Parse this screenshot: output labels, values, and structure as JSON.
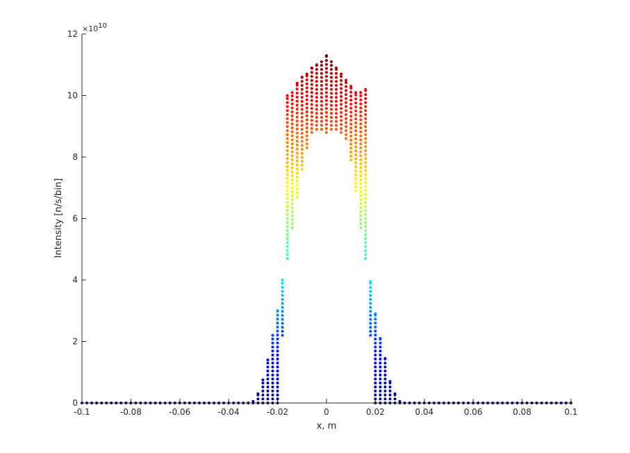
{
  "chart_data": {
    "type": "scatter",
    "xlabel": "x, m",
    "ylabel": "Intensity [n/s/bin]",
    "y_exponent_label": "×10",
    "y_exponent_power": "10",
    "xlim": [
      -0.1,
      0.1
    ],
    "ylim": [
      0,
      12
    ],
    "y_scale_factor": 10000000000.0,
    "xticks": [
      -0.1,
      -0.08,
      -0.06,
      -0.04,
      -0.02,
      0,
      0.02,
      0.04,
      0.06,
      0.08,
      0.1
    ],
    "xtick_labels": [
      "-0.1",
      "-0.08",
      "-0.06",
      "-0.04",
      "-0.02",
      "0",
      "0.02",
      "0.04",
      "0.06",
      "0.08",
      "0.1"
    ],
    "yticks": [
      0,
      2,
      4,
      6,
      8,
      10,
      12
    ],
    "ytick_labels": [
      "0",
      "2",
      "4",
      "6",
      "8",
      "10",
      "12"
    ],
    "grid": false,
    "legend": "none",
    "colormap": "jet",
    "color_range": [
      0,
      11.3
    ],
    "columns": [
      {
        "x": -0.1,
        "ymin": 0,
        "ymax": 0
      },
      {
        "x": -0.098,
        "ymin": 0,
        "ymax": 0
      },
      {
        "x": -0.096,
        "ymin": 0,
        "ymax": 0
      },
      {
        "x": -0.094,
        "ymin": 0,
        "ymax": 0
      },
      {
        "x": -0.092,
        "ymin": 0,
        "ymax": 0
      },
      {
        "x": -0.09,
        "ymin": 0,
        "ymax": 0
      },
      {
        "x": -0.088,
        "ymin": 0,
        "ymax": 0
      },
      {
        "x": -0.086,
        "ymin": 0,
        "ymax": 0
      },
      {
        "x": -0.084,
        "ymin": 0,
        "ymax": 0
      },
      {
        "x": -0.082,
        "ymin": 0,
        "ymax": 0
      },
      {
        "x": -0.08,
        "ymin": 0,
        "ymax": 0
      },
      {
        "x": -0.078,
        "ymin": 0,
        "ymax": 0
      },
      {
        "x": -0.076,
        "ymin": 0,
        "ymax": 0
      },
      {
        "x": -0.074,
        "ymin": 0,
        "ymax": 0
      },
      {
        "x": -0.072,
        "ymin": 0,
        "ymax": 0
      },
      {
        "x": -0.07,
        "ymin": 0,
        "ymax": 0
      },
      {
        "x": -0.068,
        "ymin": 0,
        "ymax": 0
      },
      {
        "x": -0.066,
        "ymin": 0,
        "ymax": 0
      },
      {
        "x": -0.064,
        "ymin": 0,
        "ymax": 0
      },
      {
        "x": -0.062,
        "ymin": 0,
        "ymax": 0
      },
      {
        "x": -0.06,
        "ymin": 0,
        "ymax": 0
      },
      {
        "x": -0.058,
        "ymin": 0,
        "ymax": 0
      },
      {
        "x": -0.056,
        "ymin": 0,
        "ymax": 0
      },
      {
        "x": -0.054,
        "ymin": 0,
        "ymax": 0
      },
      {
        "x": -0.052,
        "ymin": 0,
        "ymax": 0
      },
      {
        "x": -0.05,
        "ymin": 0,
        "ymax": 0
      },
      {
        "x": -0.048,
        "ymin": 0,
        "ymax": 0
      },
      {
        "x": -0.046,
        "ymin": 0,
        "ymax": 0
      },
      {
        "x": -0.044,
        "ymin": 0,
        "ymax": 0
      },
      {
        "x": -0.042,
        "ymin": 0,
        "ymax": 0
      },
      {
        "x": -0.04,
        "ymin": 0,
        "ymax": 0
      },
      {
        "x": -0.038,
        "ymin": 0,
        "ymax": 0
      },
      {
        "x": -0.036,
        "ymin": 0,
        "ymax": 0
      },
      {
        "x": -0.034,
        "ymin": 0,
        "ymax": 0
      },
      {
        "x": -0.032,
        "ymin": 0,
        "ymax": 0
      },
      {
        "x": -0.03,
        "ymin": 0,
        "ymax": 0.05
      },
      {
        "x": -0.028,
        "ymin": 0,
        "ymax": 0.3
      },
      {
        "x": -0.026,
        "ymin": 0,
        "ymax": 0.75
      },
      {
        "x": -0.024,
        "ymin": 0,
        "ymax": 1.4
      },
      {
        "x": -0.022,
        "ymin": 0,
        "ymax": 2.2
      },
      {
        "x": -0.02,
        "ymin": 0,
        "ymax": 3.0
      },
      {
        "x": -0.018,
        "ymin": 2.2,
        "ymax": 4.0
      },
      {
        "x": -0.016,
        "ymin": 4.7,
        "ymax": 10.0
      },
      {
        "x": -0.014,
        "ymin": 5.7,
        "ymax": 10.1
      },
      {
        "x": -0.012,
        "ymin": 6.7,
        "ymax": 10.4
      },
      {
        "x": -0.01,
        "ymin": 7.6,
        "ymax": 10.6
      },
      {
        "x": -0.008,
        "ymin": 8.3,
        "ymax": 10.7
      },
      {
        "x": -0.006,
        "ymin": 8.8,
        "ymax": 10.9
      },
      {
        "x": -0.004,
        "ymin": 8.9,
        "ymax": 11.0
      },
      {
        "x": -0.002,
        "ymin": 8.9,
        "ymax": 11.1
      },
      {
        "x": 0.0,
        "ymin": 8.8,
        "ymax": 11.3
      },
      {
        "x": 0.002,
        "ymin": 8.9,
        "ymax": 11.1
      },
      {
        "x": 0.004,
        "ymin": 8.9,
        "ymax": 10.9
      },
      {
        "x": 0.006,
        "ymin": 8.8,
        "ymax": 10.7
      },
      {
        "x": 0.008,
        "ymin": 8.6,
        "ymax": 10.5
      },
      {
        "x": 0.01,
        "ymin": 7.9,
        "ymax": 10.3
      },
      {
        "x": 0.012,
        "ymin": 6.9,
        "ymax": 10.1
      },
      {
        "x": 0.014,
        "ymin": 5.7,
        "ymax": 10.1
      },
      {
        "x": 0.016,
        "ymin": 4.7,
        "ymax": 10.2
      },
      {
        "x": 0.018,
        "ymin": 2.2,
        "ymax": 3.95
      },
      {
        "x": 0.02,
        "ymin": 0,
        "ymax": 2.9
      },
      {
        "x": 0.022,
        "ymin": 0,
        "ymax": 2.1
      },
      {
        "x": 0.024,
        "ymin": 0,
        "ymax": 1.45
      },
      {
        "x": 0.026,
        "ymin": 0,
        "ymax": 0.7
      },
      {
        "x": 0.028,
        "ymin": 0,
        "ymax": 0.3
      },
      {
        "x": 0.03,
        "ymin": 0,
        "ymax": 0.05
      },
      {
        "x": 0.032,
        "ymin": 0,
        "ymax": 0
      },
      {
        "x": 0.034,
        "ymin": 0,
        "ymax": 0
      },
      {
        "x": 0.036,
        "ymin": 0,
        "ymax": 0
      },
      {
        "x": 0.038,
        "ymin": 0,
        "ymax": 0
      },
      {
        "x": 0.04,
        "ymin": 0,
        "ymax": 0
      },
      {
        "x": 0.042,
        "ymin": 0,
        "ymax": 0
      },
      {
        "x": 0.044,
        "ymin": 0,
        "ymax": 0
      },
      {
        "x": 0.046,
        "ymin": 0,
        "ymax": 0
      },
      {
        "x": 0.048,
        "ymin": 0,
        "ymax": 0
      },
      {
        "x": 0.05,
        "ymin": 0,
        "ymax": 0
      },
      {
        "x": 0.052,
        "ymin": 0,
        "ymax": 0
      },
      {
        "x": 0.054,
        "ymin": 0,
        "ymax": 0
      },
      {
        "x": 0.056,
        "ymin": 0,
        "ymax": 0
      },
      {
        "x": 0.058,
        "ymin": 0,
        "ymax": 0
      },
      {
        "x": 0.06,
        "ymin": 0,
        "ymax": 0
      },
      {
        "x": 0.062,
        "ymin": 0,
        "ymax": 0
      },
      {
        "x": 0.064,
        "ymin": 0,
        "ymax": 0
      },
      {
        "x": 0.066,
        "ymin": 0,
        "ymax": 0
      },
      {
        "x": 0.068,
        "ymin": 0,
        "ymax": 0
      },
      {
        "x": 0.07,
        "ymin": 0,
        "ymax": 0
      },
      {
        "x": 0.072,
        "ymin": 0,
        "ymax": 0
      },
      {
        "x": 0.074,
        "ymin": 0,
        "ymax": 0
      },
      {
        "x": 0.076,
        "ymin": 0,
        "ymax": 0
      },
      {
        "x": 0.078,
        "ymin": 0,
        "ymax": 0
      },
      {
        "x": 0.08,
        "ymin": 0,
        "ymax": 0
      },
      {
        "x": 0.082,
        "ymin": 0,
        "ymax": 0
      },
      {
        "x": 0.084,
        "ymin": 0,
        "ymax": 0
      },
      {
        "x": 0.086,
        "ymin": 0,
        "ymax": 0
      },
      {
        "x": 0.088,
        "ymin": 0,
        "ymax": 0
      },
      {
        "x": 0.09,
        "ymin": 0,
        "ymax": 0
      },
      {
        "x": 0.092,
        "ymin": 0,
        "ymax": 0
      },
      {
        "x": 0.094,
        "ymin": 0,
        "ymax": 0
      },
      {
        "x": 0.096,
        "ymin": 0,
        "ymax": 0
      },
      {
        "x": 0.098,
        "ymin": 0,
        "ymax": 0
      },
      {
        "x": 0.1,
        "ymin": 0,
        "ymax": 0
      }
    ]
  }
}
